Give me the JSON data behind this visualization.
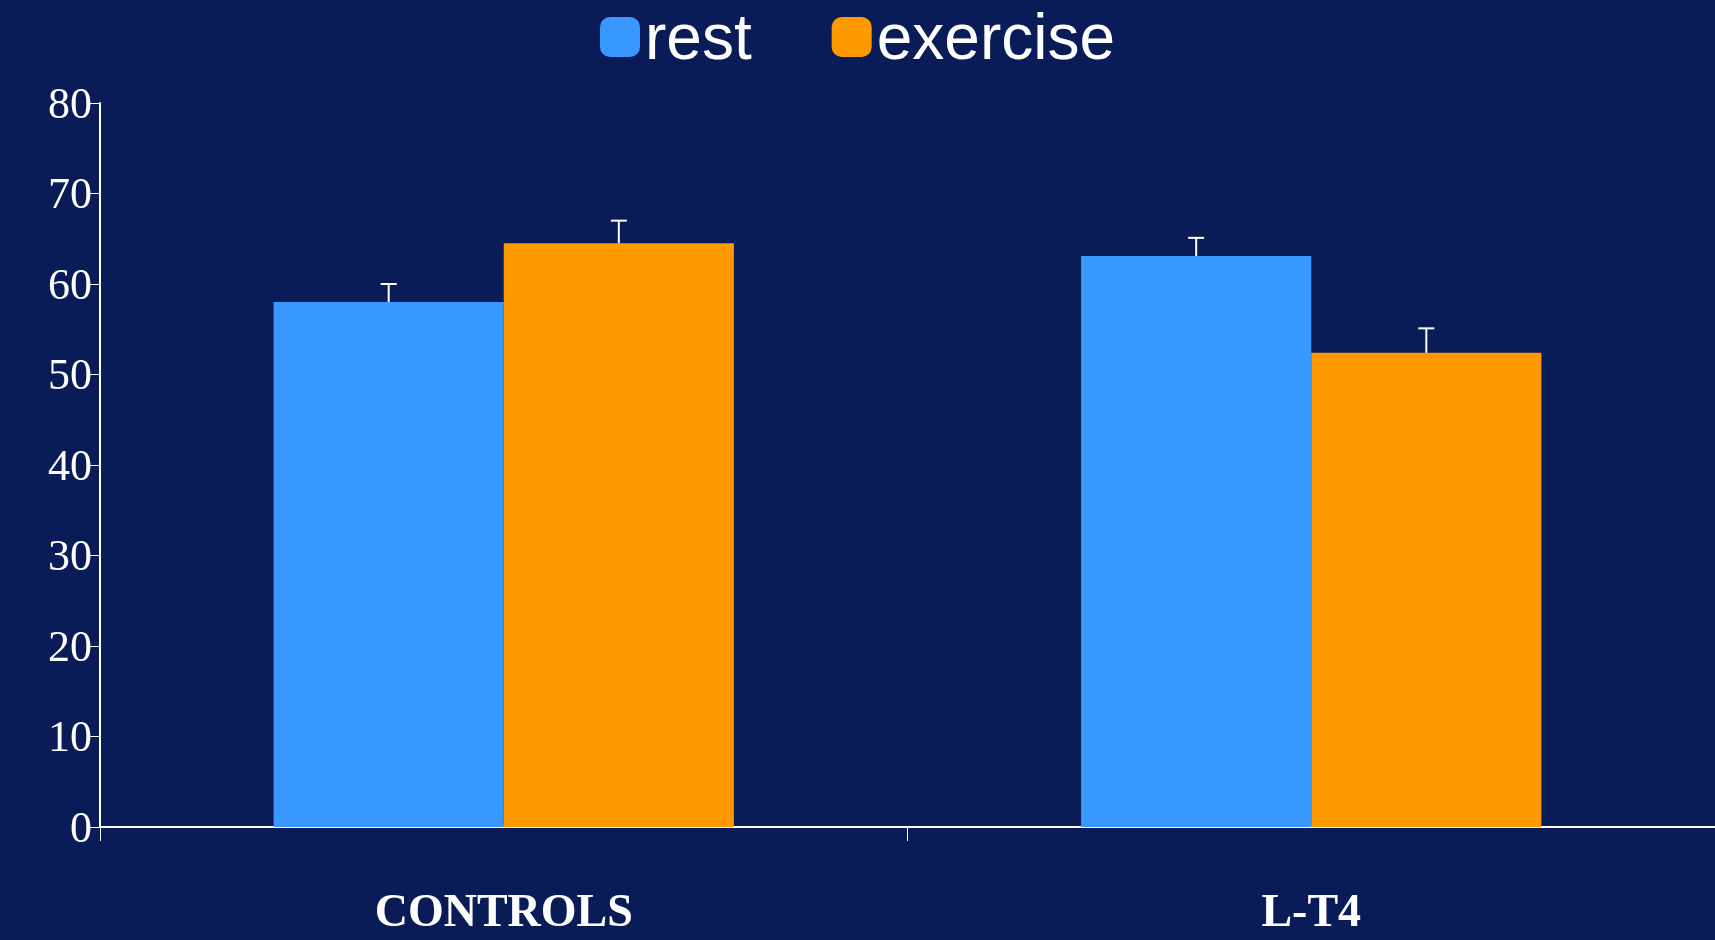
{
  "chart_data": {
    "type": "bar",
    "categories": [
      "CONTROLS",
      "L-T4"
    ],
    "series": [
      {
        "name": "rest",
        "color": "#3898ff",
        "values": [
          58,
          63.1
        ],
        "errors": [
          [
            58,
            60
          ],
          [
            63.1,
            65.1
          ]
        ]
      },
      {
        "name": "exercise",
        "color": "#ff9900",
        "values": [
          64.5,
          52.4
        ],
        "errors": [
          [
            64.5,
            67
          ],
          [
            52.4,
            55.1
          ]
        ]
      }
    ],
    "ylim": [
      0,
      80
    ],
    "yticks": [
      0,
      10,
      20,
      30,
      40,
      50,
      60,
      70,
      80
    ],
    "grid": false,
    "legend": "top"
  }
}
